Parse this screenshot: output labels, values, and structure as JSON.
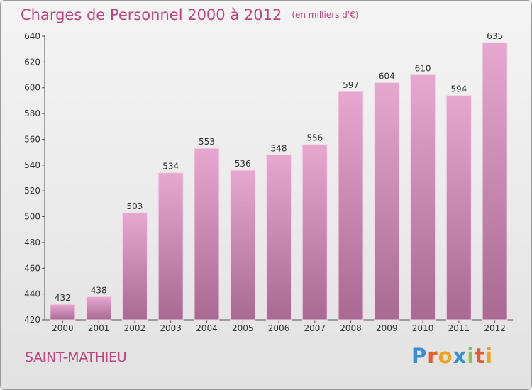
{
  "header": {
    "title": "Charges de Personnel 2000 à 2012",
    "subtitle": "(en milliers d'€)"
  },
  "footer": {
    "place": "SAINT-MATHIEU",
    "logo_text": "Proxiti",
    "logo_colors": [
      "#3a8fd4",
      "#e85c2a",
      "#f3a31b",
      "#3a8fd4",
      "#8ac43f",
      "#e85c2a",
      "#f3a31b"
    ]
  },
  "colors": {
    "bar_top": "#e6a8cf",
    "bar_bottom": "#a86a93",
    "text_accent": "#c0447a",
    "axis": "#555555"
  },
  "chart_data": {
    "type": "bar",
    "categories": [
      "2000",
      "2001",
      "2002",
      "2003",
      "2004",
      "2005",
      "2006",
      "2007",
      "2008",
      "2009",
      "2010",
      "2011",
      "2012"
    ],
    "values": [
      432,
      438,
      503,
      534,
      553,
      536,
      548,
      556,
      597,
      604,
      610,
      594,
      635
    ],
    "title": "Charges de Personnel 2000 à 2012",
    "subtitle": "(en milliers d'€)",
    "xlabel": "",
    "ylabel": "",
    "ylim": [
      420,
      640
    ],
    "yticks": [
      420,
      440,
      460,
      480,
      500,
      520,
      540,
      560,
      580,
      600,
      620,
      640
    ],
    "grid": false,
    "data_labels": true
  }
}
